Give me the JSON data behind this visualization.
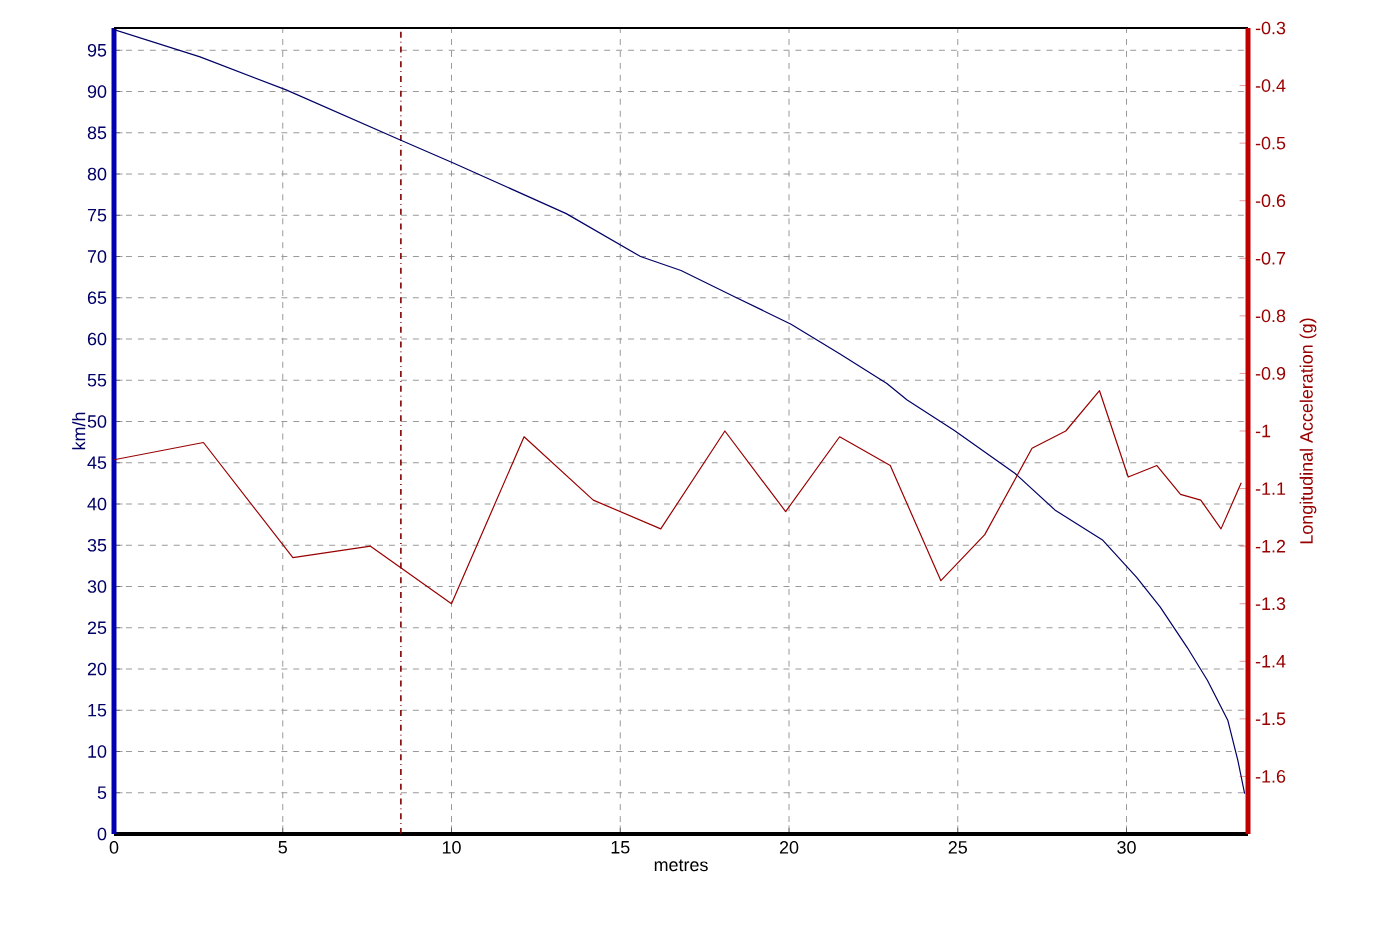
{
  "chart_data": {
    "type": "line",
    "xlabel": "metres",
    "ylabel": "km/h",
    "y2label": "Longitudinal Acceleration (g)",
    "xlim": [
      0,
      33.6
    ],
    "xticks": [
      0,
      5,
      10,
      15,
      20,
      25,
      30
    ],
    "ylim": [
      0,
      97.7
    ],
    "yticks": [
      0,
      5,
      10,
      15,
      20,
      25,
      30,
      35,
      40,
      45,
      50,
      55,
      60,
      65,
      70,
      75,
      80,
      85,
      90,
      95
    ],
    "y2lim": [
      -1.7,
      -0.3
    ],
    "y2ticks": [
      -1.6,
      -1.5,
      -1.4,
      -1.3,
      -1.2,
      -1.1,
      -1,
      -0.9,
      -0.8,
      -0.7,
      -0.6,
      -0.5,
      -0.4,
      -0.3
    ],
    "grid": true,
    "ref_lines": [
      {
        "axis": "x",
        "value": 8.5,
        "color": "#800000",
        "line_style": "dashdot"
      }
    ],
    "series": [
      {
        "color": "#000066",
        "x": [
          0,
          2.55,
          5.1,
          8.5,
          10.07,
          13.4,
          15.6,
          16.8,
          18.4,
          20.06,
          21.5,
          22.9,
          23.5,
          24.9,
          26.7,
          27.9,
          29.3,
          30.3,
          31.0,
          31.8,
          32.4,
          33.0,
          33.3,
          33.5
        ],
        "values": [
          97.5,
          94.2,
          90.2,
          84.1,
          81.3,
          75.2,
          70.0,
          68.3,
          65.1,
          61.8,
          58.2,
          54.6,
          52.6,
          48.9,
          43.7,
          39.2,
          35.6,
          31.1,
          27.5,
          22.6,
          18.6,
          13.8,
          8.9,
          4.9
        ]
      },
      {
        "color": "#990000",
        "axis": "y2",
        "x": [
          0,
          2.65,
          5.3,
          7.6,
          10.0,
          12.15,
          14.2,
          16.2,
          18.1,
          19.9,
          21.5,
          23.0,
          24.5,
          25.8,
          27.2,
          28.2,
          29.2,
          30.05,
          30.9,
          31.6,
          32.2,
          32.8,
          33.4
        ],
        "values": [
          -1.05,
          -1.02,
          -1.22,
          -1.2,
          -1.3,
          -1.01,
          -1.12,
          -1.17,
          -1.0,
          -1.14,
          -1.01,
          -1.06,
          -1.26,
          -1.18,
          -1.03,
          -1.0,
          -0.93,
          -1.08,
          -1.06,
          -1.11,
          -1.12,
          -1.17,
          -1.09
        ]
      }
    ]
  }
}
